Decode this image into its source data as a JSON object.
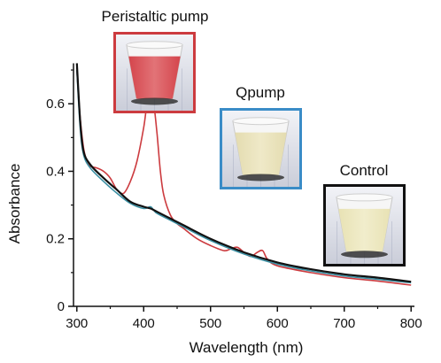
{
  "chart_data": {
    "type": "line",
    "title": "",
    "xlabel": "Wavelength (nm)",
    "ylabel": "Absorbance",
    "xlim": [
      295,
      805
    ],
    "ylim": [
      0,
      0.75
    ],
    "xticks": [
      300,
      400,
      500,
      600,
      700,
      800
    ],
    "yticks": [
      0,
      0.2,
      0.4,
      0.6
    ],
    "yticklabels": [
      "0",
      "0.2",
      "0.4",
      "0.6"
    ],
    "grid": false,
    "series": [
      {
        "name": "Peristaltic pump",
        "color": "#cc3b3f",
        "x": [
          300,
          305,
          310,
          315,
          320,
          330,
          340,
          350,
          360,
          370,
          380,
          390,
          400,
          405,
          410,
          415,
          420,
          425,
          430,
          440,
          450,
          460,
          480,
          500,
          520,
          530,
          540,
          550,
          560,
          570,
          578,
          585,
          600,
          650,
          700,
          750,
          800
        ],
        "y": [
          0.7,
          0.56,
          0.47,
          0.43,
          0.415,
          0.41,
          0.4,
          0.38,
          0.345,
          0.335,
          0.37,
          0.43,
          0.53,
          0.6,
          0.62,
          0.6,
          0.51,
          0.4,
          0.33,
          0.27,
          0.245,
          0.23,
          0.2,
          0.18,
          0.165,
          0.17,
          0.175,
          0.16,
          0.148,
          0.16,
          0.165,
          0.14,
          0.12,
          0.1,
          0.085,
          0.075,
          0.063
        ]
      },
      {
        "name": "Qpump",
        "color": "#3a8fa3",
        "x": [
          300,
          305,
          310,
          320,
          340,
          360,
          380,
          400,
          410,
          415,
          420,
          440,
          460,
          500,
          550,
          600,
          650,
          700,
          750,
          800
        ],
        "y": [
          0.7,
          0.53,
          0.45,
          0.41,
          0.37,
          0.335,
          0.305,
          0.29,
          0.295,
          0.285,
          0.275,
          0.255,
          0.235,
          0.195,
          0.155,
          0.125,
          0.105,
          0.09,
          0.08,
          0.07
        ]
      },
      {
        "name": "Control",
        "color": "#111111",
        "x": [
          300,
          305,
          310,
          320,
          340,
          360,
          380,
          400,
          410,
          420,
          440,
          460,
          500,
          550,
          600,
          650,
          700,
          750,
          800
        ],
        "y": [
          0.72,
          0.55,
          0.46,
          0.42,
          0.38,
          0.345,
          0.31,
          0.295,
          0.29,
          0.28,
          0.26,
          0.24,
          0.2,
          0.16,
          0.13,
          0.11,
          0.095,
          0.085,
          0.073
        ]
      }
    ],
    "insets": [
      {
        "label": "Peristaltic pump",
        "border": "#cc3b3f",
        "liquid": "#d4454c",
        "liquid_light": "#e27377"
      },
      {
        "label": "Qpump",
        "border": "#3a8cc7",
        "liquid": "#e4dcb0",
        "liquid_light": "#efe9c8"
      },
      {
        "label": "Control",
        "border": "#111111",
        "liquid": "#e8e2b4",
        "liquid_light": "#f1edcc"
      }
    ]
  }
}
